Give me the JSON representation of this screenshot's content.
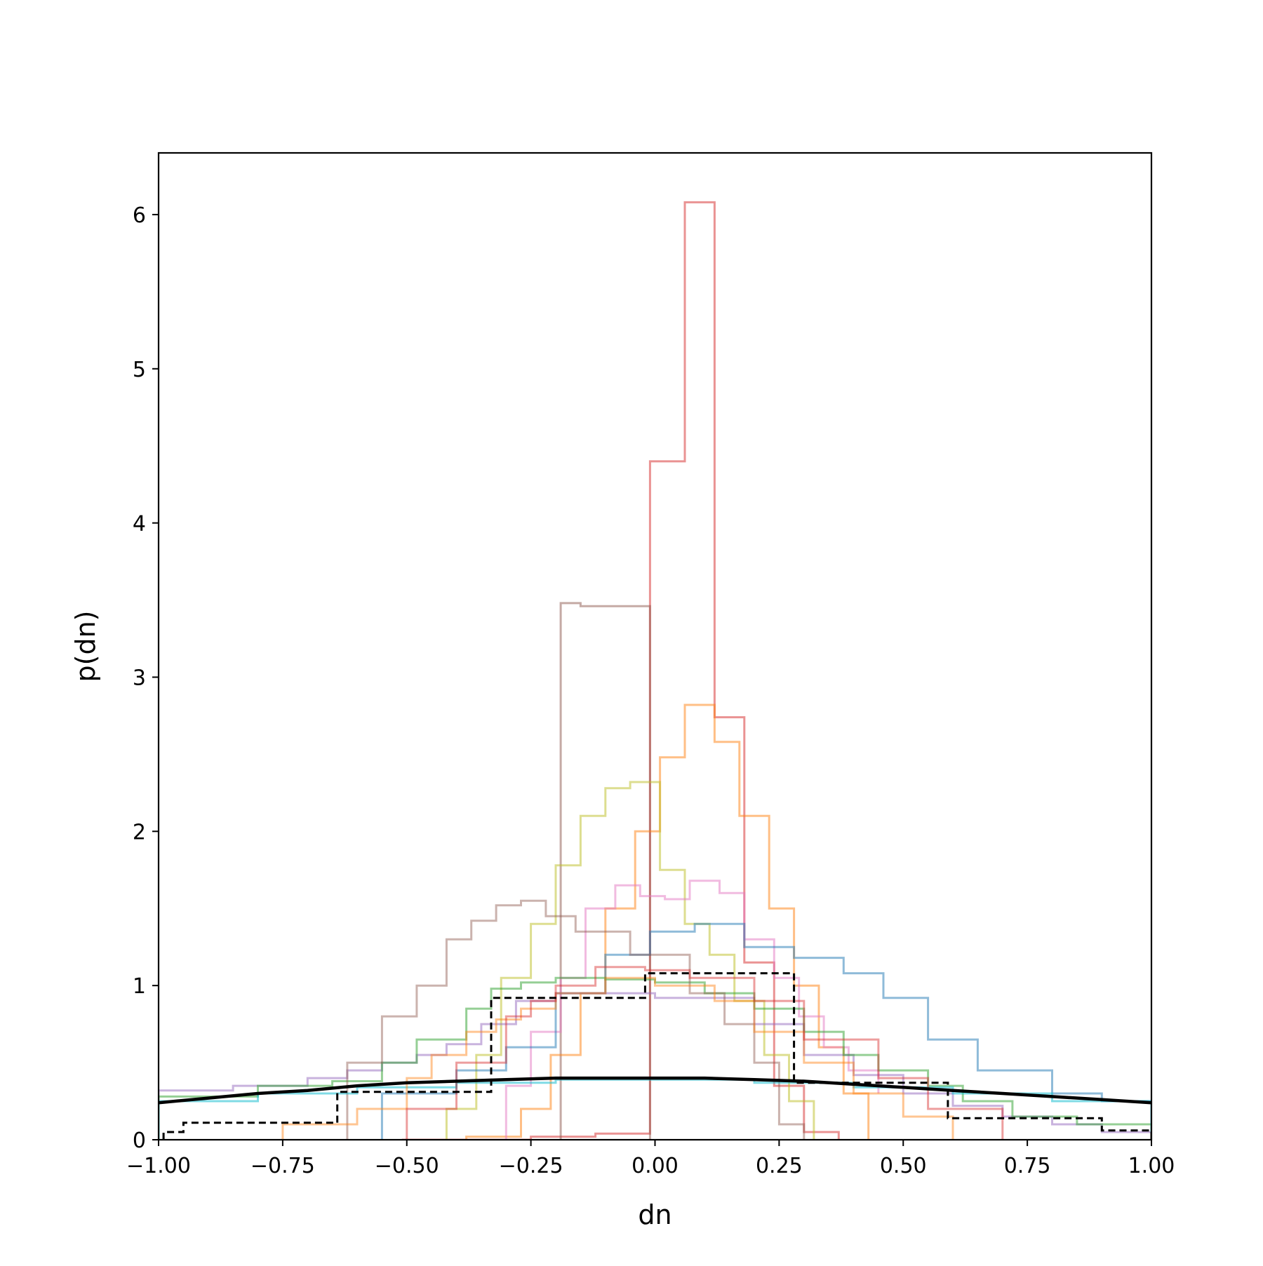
{
  "chart_data": {
    "type": "step-histogram",
    "title": "",
    "xlabel": "dn",
    "ylabel": "p(dn)",
    "xlim": [
      -1.0,
      1.0
    ],
    "ylim": [
      0,
      6.4
    ],
    "grid": false,
    "legend": "none",
    "x_ticks": [
      -1.0,
      -0.75,
      -0.5,
      -0.25,
      0.0,
      0.25,
      0.5,
      0.75,
      1.0
    ],
    "x_tick_labels": [
      "−1.00",
      "−0.75",
      "−0.50",
      "−0.25",
      "0.00",
      "0.25",
      "0.50",
      "0.75",
      "1.00"
    ],
    "y_ticks": [
      0,
      1,
      2,
      3,
      4,
      5,
      6
    ],
    "y_tick_labels": [
      "0",
      "1",
      "2",
      "3",
      "4",
      "5",
      "6"
    ],
    "series": [
      {
        "color": "#d62728",
        "opacity": 0.5,
        "edges": [
          -0.51,
          -0.38,
          -0.25,
          -0.12,
          -0.01,
          0.06,
          0.12,
          0.18,
          0.24,
          0.3,
          0.37
        ],
        "values": [
          0.0,
          0.0,
          0.02,
          0.04,
          4.4,
          6.08,
          2.74,
          1.15,
          0.35,
          0.05
        ]
      },
      {
        "color": "#8c564b",
        "opacity": 0.5,
        "edges": [
          -0.19,
          -0.15,
          -0.01
        ],
        "values": [
          3.48,
          3.46
        ]
      },
      {
        "color": "#ff7f0e",
        "opacity": 0.5,
        "edges": [
          -0.38,
          -0.27,
          -0.21,
          -0.15,
          -0.1,
          -0.04,
          0.01,
          0.06,
          0.12,
          0.17,
          0.23,
          0.28,
          0.33,
          0.38,
          0.43
        ],
        "values": [
          0.02,
          0.2,
          0.55,
          0.95,
          1.5,
          2.0,
          2.48,
          2.82,
          2.58,
          2.1,
          1.5,
          1.0,
          0.6,
          0.3
        ]
      },
      {
        "color": "#bcbd22",
        "opacity": 0.5,
        "edges": [
          -0.42,
          -0.36,
          -0.31,
          -0.25,
          -0.2,
          -0.15,
          -0.1,
          -0.05,
          0.01,
          0.06,
          0.11,
          0.16,
          0.22,
          0.27,
          0.32
        ],
        "values": [
          0.2,
          0.55,
          1.05,
          1.4,
          1.78,
          2.1,
          2.28,
          2.32,
          1.75,
          1.4,
          1.2,
          0.9,
          0.55,
          0.25
        ]
      },
      {
        "color": "#e377c2",
        "opacity": 0.5,
        "edges": [
          -0.3,
          -0.25,
          -0.19,
          -0.14,
          -0.08,
          -0.03,
          0.02,
          0.07,
          0.13,
          0.18,
          0.24,
          0.29,
          0.34,
          0.39,
          0.45
        ],
        "values": [
          0.35,
          0.7,
          1.05,
          1.5,
          1.65,
          1.58,
          1.56,
          1.68,
          1.6,
          1.3,
          1.05,
          0.8,
          0.6,
          0.45,
          0.3
        ]
      },
      {
        "color": "#1f77b4",
        "opacity": 0.5,
        "edges": [
          -0.55,
          -0.4,
          -0.3,
          -0.2,
          -0.1,
          -0.01,
          0.08,
          0.18,
          0.28,
          0.38,
          0.46,
          0.55,
          0.65,
          0.8,
          0.9,
          1.0
        ],
        "values": [
          0.3,
          0.45,
          0.6,
          0.95,
          1.2,
          1.35,
          1.4,
          1.25,
          1.18,
          1.08,
          0.92,
          0.65,
          0.45,
          0.3,
          0.25
        ]
      },
      {
        "color": "#9467bd",
        "opacity": 0.5,
        "edges": [
          -1.0,
          -0.85,
          -0.7,
          -0.62,
          -0.55,
          -0.48,
          -0.42,
          -0.35,
          -0.28,
          -0.2,
          0.0,
          0.2,
          0.3,
          0.4,
          0.5,
          0.6,
          0.7,
          0.8,
          0.9,
          1.0
        ],
        "values": [
          0.32,
          0.35,
          0.4,
          0.45,
          0.5,
          0.55,
          0.62,
          0.75,
          0.9,
          0.95,
          0.92,
          0.75,
          0.55,
          0.42,
          0.3,
          0.22,
          0.15,
          0.1,
          0.05
        ]
      },
      {
        "color": "#2ca02c",
        "opacity": 0.5,
        "edges": [
          -1.0,
          -0.8,
          -0.65,
          -0.55,
          -0.48,
          -0.38,
          -0.33,
          -0.27,
          -0.2,
          -0.1,
          0.0,
          0.1,
          0.2,
          0.3,
          0.38,
          0.45,
          0.55,
          0.62,
          0.72,
          0.85,
          1.0
        ],
        "values": [
          0.28,
          0.35,
          0.38,
          0.5,
          0.65,
          0.85,
          0.98,
          1.02,
          1.05,
          1.04,
          1.02,
          0.95,
          0.85,
          0.7,
          0.55,
          0.45,
          0.35,
          0.25,
          0.15,
          0.1
        ]
      },
      {
        "color": "#8c564b",
        "opacity": 0.45,
        "edges": [
          -0.62,
          -0.55,
          -0.48,
          -0.42,
          -0.37,
          -0.32,
          -0.27,
          -0.22,
          -0.16,
          -0.05,
          0.07,
          0.14,
          0.2,
          0.25,
          0.3
        ],
        "values": [
          0.5,
          0.8,
          1.0,
          1.3,
          1.42,
          1.52,
          1.55,
          1.45,
          1.35,
          1.2,
          0.95,
          0.75,
          0.5,
          0.1
        ]
      },
      {
        "color": "#17becf",
        "opacity": 0.55,
        "edges": [
          -1.0,
          -0.8,
          -0.6,
          -0.4,
          -0.2,
          0.0,
          0.2,
          0.4,
          0.6,
          0.8,
          1.0
        ],
        "values": [
          0.25,
          0.3,
          0.34,
          0.37,
          0.39,
          0.39,
          0.37,
          0.34,
          0.3,
          0.25
        ]
      },
      {
        "color": "#ff7f0e",
        "opacity": 0.45,
        "edges": [
          -0.75,
          -0.6,
          -0.5,
          -0.45,
          -0.38,
          -0.32,
          -0.27,
          -0.2,
          -0.1,
          0.0,
          0.12,
          0.2,
          0.3,
          0.4,
          0.5,
          0.6
        ],
        "values": [
          0.1,
          0.2,
          0.4,
          0.55,
          0.7,
          0.78,
          0.85,
          0.95,
          1.05,
          1.0,
          0.9,
          0.7,
          0.5,
          0.3,
          0.15
        ]
      },
      {
        "color": "#d62728",
        "opacity": 0.45,
        "edges": [
          -0.5,
          -0.4,
          -0.3,
          -0.25,
          -0.2,
          -0.12,
          -0.02,
          0.07,
          0.2,
          0.3,
          0.45,
          0.55,
          0.7
        ],
        "values": [
          0.2,
          0.5,
          0.8,
          0.9,
          1.0,
          1.12,
          1.1,
          1.05,
          0.9,
          0.65,
          0.4,
          0.2
        ]
      }
    ],
    "dashed_histogram": {
      "color": "#000000",
      "edges": [
        -0.99,
        -0.95,
        -0.64,
        -0.33,
        -0.02,
        0.28,
        0.59,
        0.9,
        1.0
      ],
      "values": [
        0.05,
        0.11,
        0.31,
        0.92,
        1.08,
        0.37,
        0.14,
        0.06
      ]
    },
    "curve": {
      "color": "#000000",
      "x": [
        -1.0,
        -0.9,
        -0.8,
        -0.7,
        -0.6,
        -0.5,
        -0.4,
        -0.3,
        -0.2,
        -0.1,
        0.0,
        0.1,
        0.2,
        0.3,
        0.4,
        0.5,
        0.6,
        0.7,
        0.8,
        0.9,
        1.0
      ],
      "y": [
        0.24,
        0.27,
        0.3,
        0.32,
        0.35,
        0.37,
        0.38,
        0.39,
        0.4,
        0.4,
        0.4,
        0.4,
        0.39,
        0.38,
        0.36,
        0.34,
        0.32,
        0.3,
        0.28,
        0.26,
        0.24
      ]
    }
  }
}
